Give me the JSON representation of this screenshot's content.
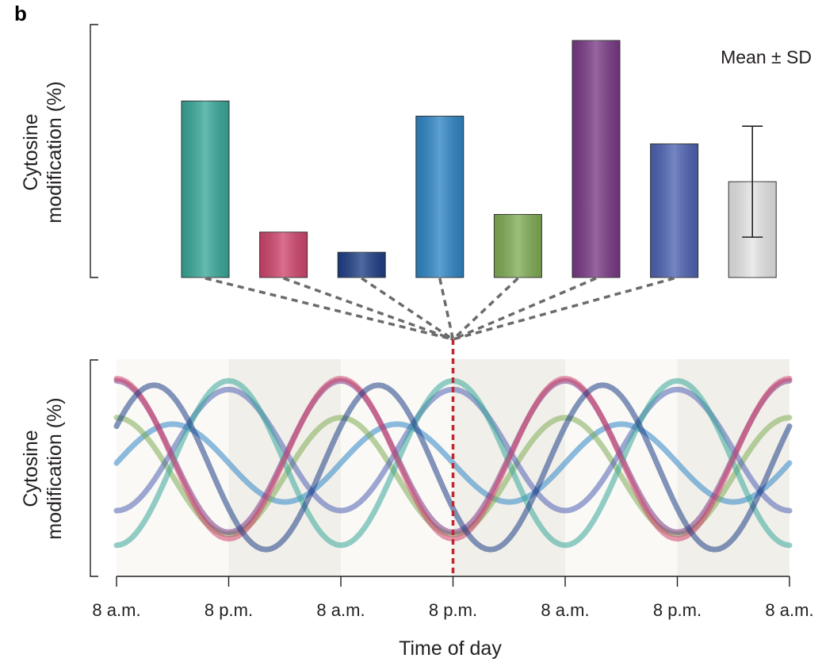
{
  "panel_letter": "b",
  "chart_data": [
    {
      "type": "bar",
      "ylabel_line1": "Cytosine",
      "ylabel_line2": "modification (%)",
      "annotation": "Mean ± SD",
      "ylim": [
        0,
        100
      ],
      "bars": [
        {
          "value": 70,
          "color": "#3aa89a"
        },
        {
          "value": 18,
          "color": "#d0466e"
        },
        {
          "value": 10,
          "color": "#1f3f86"
        },
        {
          "value": 64,
          "color": "#2f86c6"
        },
        {
          "value": 25,
          "color": "#80ad55"
        },
        {
          "value": 94,
          "color": "#7a3a86"
        },
        {
          "value": 53,
          "color": "#4e63b3"
        },
        {
          "value": 38,
          "color": "#e6e6e6",
          "error": 22
        }
      ]
    },
    {
      "type": "line",
      "ylabel_line1": "Cytosine",
      "ylabel_line2": "modification (%)",
      "xlabel": "Time of day",
      "x_ticks": [
        "8 a.m.",
        "8 p.m.",
        "8 a.m.",
        "8 p.m.",
        "8 a.m.",
        "8 p.m.",
        "8 a.m."
      ],
      "x_range_hours": [
        0,
        72
      ],
      "ylim": [
        0,
        100
      ],
      "sample_time_hours": 36,
      "period_hours": 24,
      "series": [
        {
          "color": "#2f86c6",
          "mean": 52,
          "amplitude": 18,
          "peak_hour": 6
        },
        {
          "color": "#80ad55",
          "mean": 46,
          "amplitude": 27,
          "peak_hour": 24
        },
        {
          "color": "#7a3a86",
          "mean": 55,
          "amplitude": 35,
          "peak_hour": 0
        },
        {
          "color": "#4e63b3",
          "mean": 58,
          "amplitude": 28,
          "peak_hour": 12
        },
        {
          "color": "#3aa89a",
          "mean": 52,
          "amplitude": 38,
          "peak_hour": 12
        },
        {
          "color": "#d0466e",
          "mean": 54,
          "amplitude": 37,
          "peak_hour": 24
        },
        {
          "color": "#1f3f86",
          "mean": 50,
          "amplitude": 38,
          "peak_hour": 28
        }
      ]
    }
  ]
}
